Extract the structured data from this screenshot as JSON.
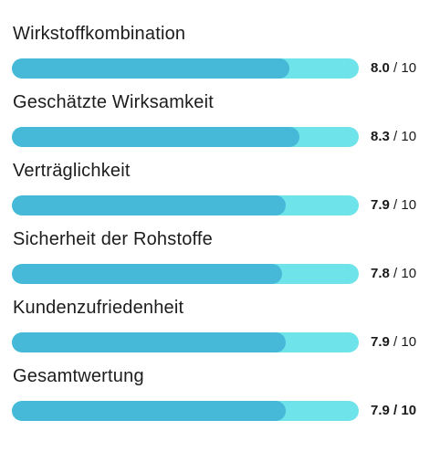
{
  "ratings": [
    {
      "label": "Wirkstoffkombination",
      "value": "8.0",
      "max": "/ 10",
      "fraction": 0.8
    },
    {
      "label": "Geschätzte Wirksamkeit",
      "value": "8.3",
      "max": "/ 10",
      "fraction": 0.83
    },
    {
      "label": "Verträglichkeit",
      "value": "7.9",
      "max": "/ 10",
      "fraction": 0.79
    },
    {
      "label": "Sicherheit der Rohstoffe",
      "value": "7.8",
      "max": "/ 10",
      "fraction": 0.78
    },
    {
      "label": "Kundenzufriedenheit",
      "value": "7.9",
      "max": "/ 10",
      "fraction": 0.79
    },
    {
      "label": "Gesamtwertung",
      "value": "7.9",
      "max": "/ 10",
      "fraction": 0.79,
      "total": true
    }
  ],
  "colors": {
    "bar_track": "#6fe3ea",
    "bar_fill": "#45b9d7",
    "text": "#1c1c1c"
  }
}
